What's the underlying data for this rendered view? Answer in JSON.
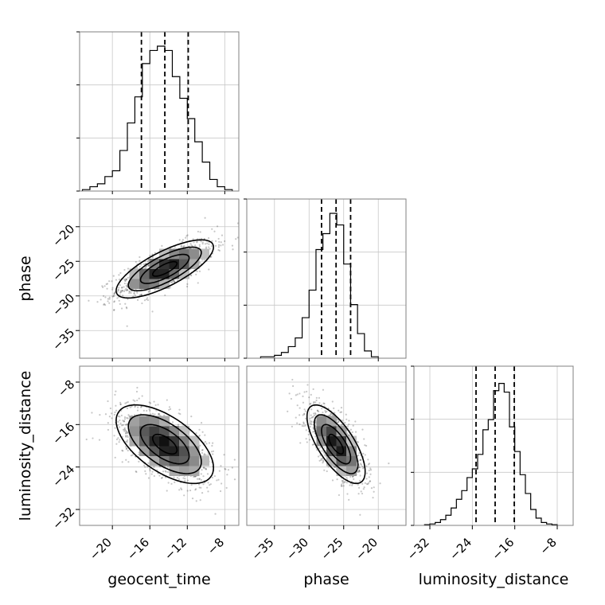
{
  "chart_data": {
    "type": "corner",
    "grid": true,
    "parameters": [
      {
        "name": "geocent_time",
        "label": "geocent_time",
        "range": [
          -23.5,
          -6.5
        ],
        "ticks": [
          -20,
          -16,
          -12,
          -8
        ],
        "tick_labels": [
          "−20",
          "−16",
          "−12",
          "−8"
        ],
        "quantiles": [
          -16.9,
          -14.4,
          -11.9
        ],
        "histogram": {
          "bin_edges": [
            -23.2,
            -22.4,
            -21.6,
            -20.8,
            -20.0,
            -19.2,
            -18.4,
            -17.6,
            -16.8,
            -16.0,
            -15.2,
            -14.4,
            -13.6,
            -12.8,
            -12.0,
            -11.2,
            -10.4,
            -9.6,
            -8.8,
            -8.0,
            -7.2
          ],
          "heights": [
            0.01,
            0.03,
            0.05,
            0.1,
            0.14,
            0.28,
            0.47,
            0.65,
            0.88,
            0.97,
            1.0,
            0.97,
            0.79,
            0.64,
            0.5,
            0.34,
            0.2,
            0.08,
            0.03,
            0.01
          ]
        }
      },
      {
        "name": "phase",
        "label": "phase",
        "range": [
          -39.0,
          -16.0
        ],
        "ticks": [
          -35,
          -30,
          -25,
          -20
        ],
        "tick_labels": [
          "−35",
          "−30",
          "−25",
          "−20"
        ],
        "quantiles": [
          -28.2,
          -26.1,
          -24.0
        ],
        "histogram": {
          "bin_edges": [
            -37.0,
            -36.0,
            -35.0,
            -34.0,
            -33.0,
            -32.0,
            -31.0,
            -30.0,
            -29.0,
            -28.0,
            -27.0,
            -26.0,
            -25.0,
            -24.0,
            -23.0,
            -22.0,
            -21.0,
            -20.0
          ],
          "heights": [
            0.01,
            0.01,
            0.02,
            0.04,
            0.08,
            0.14,
            0.28,
            0.47,
            0.75,
            0.86,
            1.0,
            0.92,
            0.65,
            0.37,
            0.17,
            0.05,
            0.01
          ]
        }
      },
      {
        "name": "luminosity_distance",
        "label": "luminosity_distance",
        "range": [
          -35.0,
          -5.0
        ],
        "ticks": [
          -32,
          -24,
          -16,
          -8
        ],
        "tick_labels": [
          "−32",
          "−24",
          "−16",
          "−8"
        ],
        "quantiles": [
          -23.3,
          -19.7,
          -16.1
        ],
        "histogram": {
          "bin_edges": [
            -33.0,
            -32.0,
            -31.0,
            -30.0,
            -29.0,
            -28.0,
            -27.0,
            -26.0,
            -25.0,
            -24.0,
            -23.0,
            -22.0,
            -21.0,
            -20.0,
            -19.0,
            -18.0,
            -17.0,
            -16.0,
            -15.0,
            -14.0,
            -13.0,
            -12.0,
            -11.0,
            -10.0,
            -9.0,
            -8.0
          ],
          "heights": [
            0.005,
            0.01,
            0.02,
            0.04,
            0.07,
            0.12,
            0.18,
            0.24,
            0.33,
            0.39,
            0.49,
            0.66,
            0.73,
            0.93,
            0.98,
            0.92,
            0.68,
            0.51,
            0.35,
            0.22,
            0.11,
            0.05,
            0.02,
            0.01,
            0.005
          ]
        }
      }
    ],
    "pairs": [
      {
        "x": "geocent_time",
        "y": "phase",
        "mean": [
          -14.4,
          -26.1
        ],
        "sigma": [
          2.6,
          2.1
        ],
        "rho": 0.75
      },
      {
        "x": "geocent_time",
        "y": "luminosity_distance",
        "mean": [
          -14.4,
          -19.7
        ],
        "sigma": [
          2.6,
          3.7
        ],
        "rho": -0.6
      },
      {
        "x": "phase",
        "y": "luminosity_distance",
        "mean": [
          -26.1,
          -19.7
        ],
        "sigma": [
          2.1,
          3.7
        ],
        "rho": -0.7
      }
    ],
    "contour_levels": [
      0.5,
      1.0,
      1.5,
      2.0
    ]
  }
}
